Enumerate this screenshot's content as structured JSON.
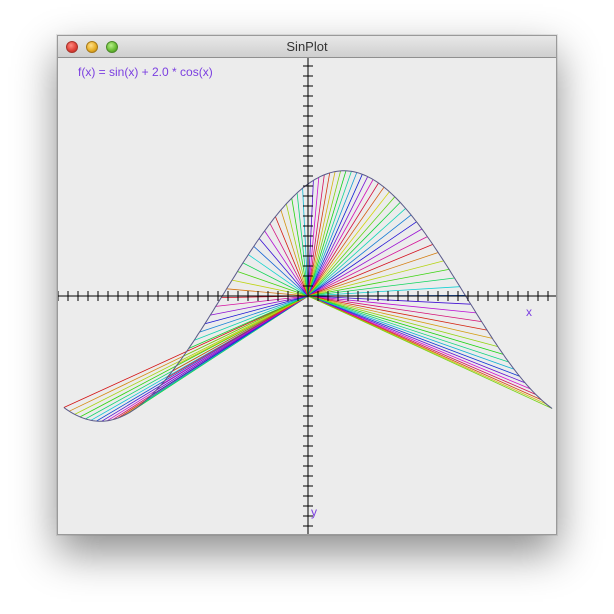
{
  "window": {
    "title": "SinPlot"
  },
  "plot": {
    "formula_label": "f(x) = sin(x) + 2.0 * cos(x)",
    "x_axis_label": "x",
    "y_axis_label": "y",
    "label_color": "#7b3fe0",
    "axis_color": "#000000",
    "curve_color": "#5a5a8a"
  },
  "chart_data": {
    "type": "line",
    "title": "f(x) = sin(x) + 2.0 * cos(x)",
    "xlabel": "x",
    "ylabel": "y",
    "function": "sin(x) + 2.0 * cos(x)",
    "xlim": [
      -3.2,
      3.2
    ],
    "ylim": [
      -3.0,
      3.0
    ],
    "grid": false,
    "legend": "none",
    "series": [
      {
        "x": [
          -3.14,
          -2.5,
          -2.0,
          -1.5,
          -1.0,
          -0.5,
          0.0,
          0.5,
          1.0,
          1.5,
          2.0,
          2.5,
          3.14
        ],
        "values": [
          -2.0,
          -2.2,
          -1.74,
          -0.86,
          0.24,
          1.28,
          2.0,
          2.23,
          1.92,
          1.14,
          0.08,
          -1.0,
          -2.0
        ]
      }
    ]
  }
}
